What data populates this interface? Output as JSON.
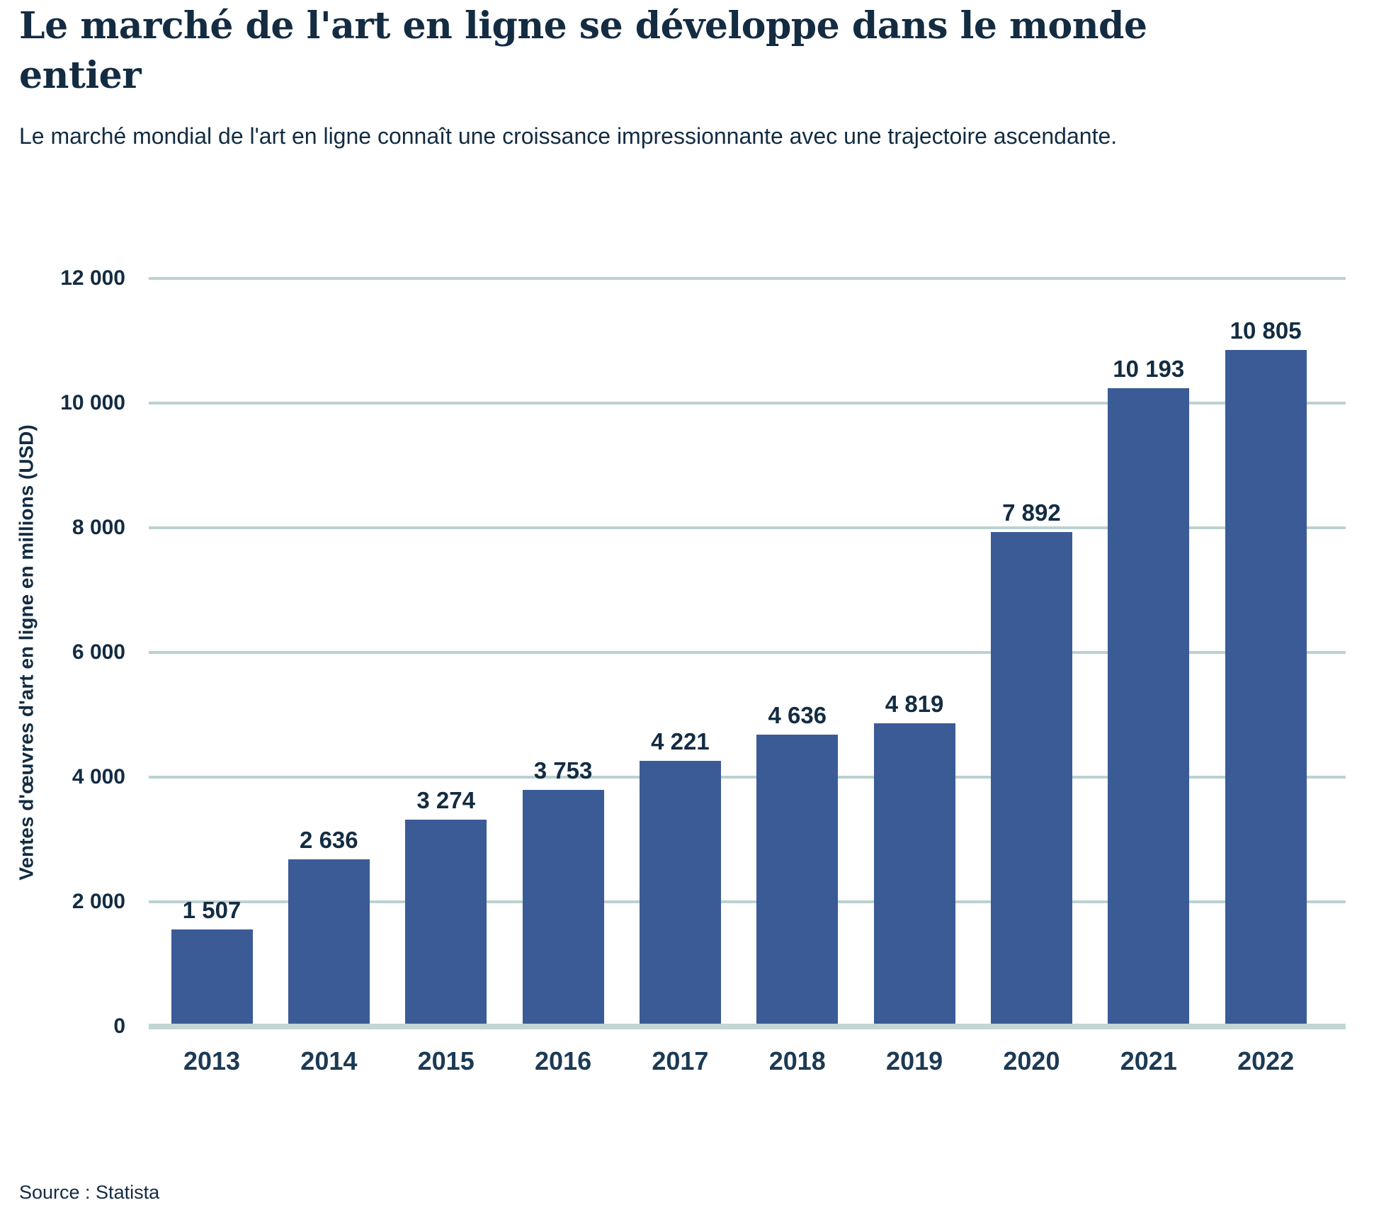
{
  "chart_data": {
    "type": "bar",
    "title": "Le marché de l'art en ligne se développe dans le monde entier",
    "subtitle": "Le marché mondial de l'art en ligne connaît une croissance impressionnante avec une trajectoire ascendante.",
    "xlabel": "",
    "ylabel": "Ventes d'œuvres d'art en ligne en millions (USD)",
    "categories": [
      "2013",
      "2014",
      "2015",
      "2016",
      "2017",
      "2018",
      "2019",
      "2020",
      "2021",
      "2022"
    ],
    "values": [
      1507,
      2636,
      3274,
      3753,
      4221,
      4636,
      4819,
      7892,
      10193,
      10805
    ],
    "value_labels": [
      "1 507",
      "2 636",
      "3 274",
      "3 753",
      "4 221",
      "4 636",
      "4 819",
      "7 892",
      "10 193",
      "10 805"
    ],
    "ylim": [
      0,
      12000
    ],
    "ytick_step": 2000,
    "yticks": [
      {
        "value": 0,
        "label": "0"
      },
      {
        "value": 2000,
        "label": "2 000"
      },
      {
        "value": 4000,
        "label": "4 000"
      },
      {
        "value": 6000,
        "label": "6 000"
      },
      {
        "value": 8000,
        "label": "8 000"
      },
      {
        "value": 10000,
        "label": "10 000"
      },
      {
        "value": 12000,
        "label": "12 000"
      }
    ],
    "grid": true,
    "legend": false
  },
  "source": "Source : Statista",
  "colors": {
    "bar_fill": "#3A5B96",
    "gridline": "#BCD1D1",
    "axis_line": "#C2D6D4",
    "text_primary": "#132C42",
    "text_xtick": "#1C3A54"
  }
}
